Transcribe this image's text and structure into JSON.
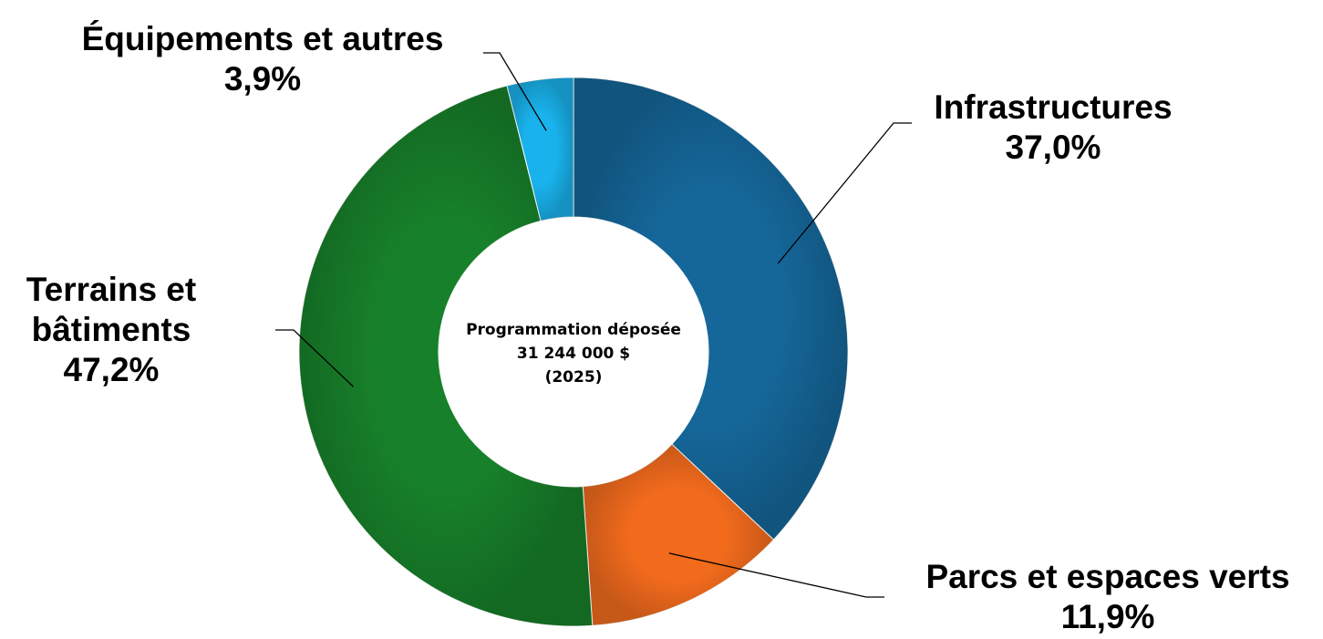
{
  "chart_data": {
    "type": "pie",
    "center_text": [
      "Programmation déposée",
      "31 244 000 $",
      "(2025)"
    ],
    "categories": [
      "Infrastructures",
      "Parcs et espaces verts",
      "Terrains et bâtiments",
      "Équipements et autres"
    ],
    "values": [
      37.0,
      11.9,
      47.2,
      3.9
    ],
    "value_labels": [
      "37,0%",
      "11,9%",
      "47,2%",
      "3,9%"
    ],
    "colors": [
      "#15679a",
      "#f26b1d",
      "#17802a",
      "#19b2ec"
    ],
    "donut": true
  }
}
